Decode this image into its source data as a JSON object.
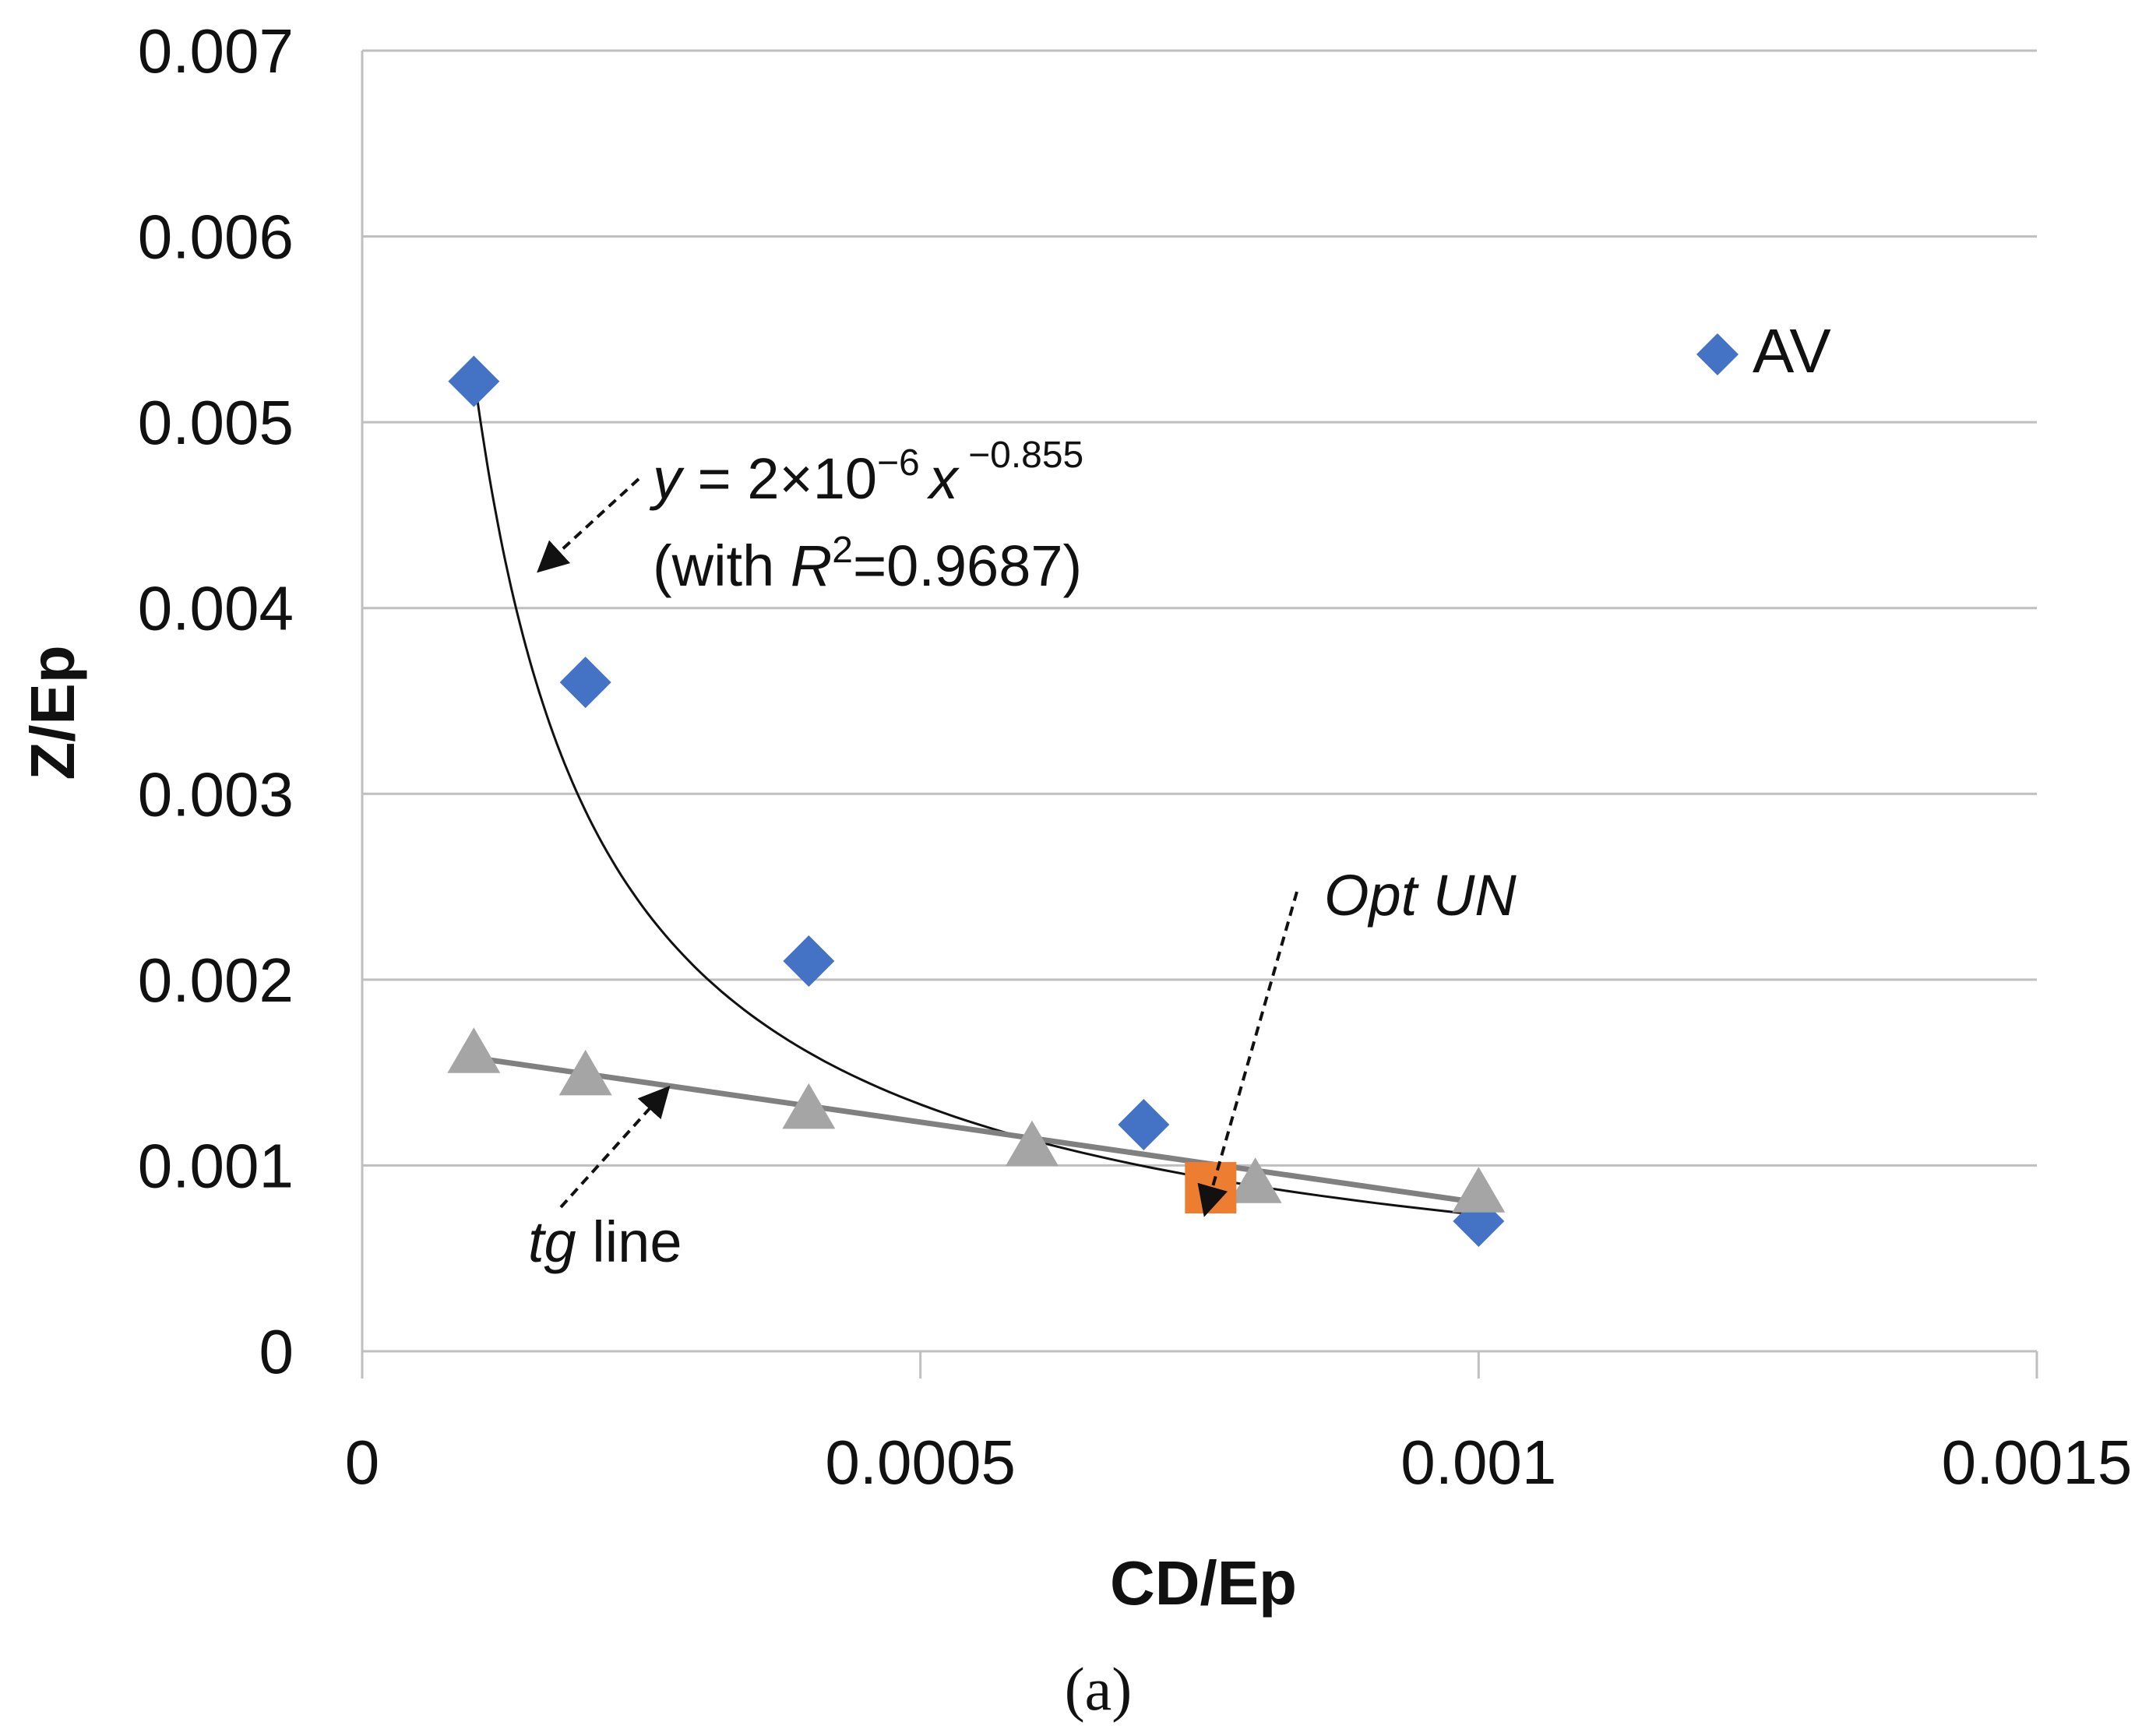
{
  "chart_data": {
    "type": "scatter",
    "title": "",
    "xlabel": "CD/Ep",
    "ylabel": "Z/Ep",
    "xlim": [
      0,
      0.0015
    ],
    "ylim": [
      0,
      0.007
    ],
    "x_ticks": [
      "0",
      "0.0005",
      "0.001",
      "0.0015"
    ],
    "y_ticks": [
      "0",
      "0.001",
      "0.002",
      "0.003",
      "0.004",
      "0.005",
      "0.006",
      "0.007"
    ],
    "grid": "horizontal",
    "legend_position": "top-right",
    "series": [
      {
        "name": "AV",
        "marker": "diamond",
        "color": "#4472C4",
        "points": [
          {
            "x": 0.0001,
            "y": 0.00522
          },
          {
            "x": 0.0002,
            "y": 0.0036
          },
          {
            "x": 0.0004,
            "y": 0.0021
          },
          {
            "x": 0.0007,
            "y": 0.00122
          },
          {
            "x": 0.001,
            "y": 0.0007
          }
        ]
      },
      {
        "name": "tg",
        "marker": "triangle",
        "color": "#A5A5A5",
        "points": [
          {
            "x": 0.0001,
            "y": 0.0016
          },
          {
            "x": 0.0002,
            "y": 0.00148
          },
          {
            "x": 0.0004,
            "y": 0.0013
          },
          {
            "x": 0.0006,
            "y": 0.0011
          },
          {
            "x": 0.0008,
            "y": 0.0009
          },
          {
            "x": 0.001,
            "y": 0.00085
          }
        ]
      },
      {
        "name": "Opt UN",
        "marker": "square",
        "color": "#ED7D31",
        "points": [
          {
            "x": 0.00076,
            "y": 0.00088
          }
        ]
      }
    ],
    "power_fit": {
      "a": 2e-06,
      "b": -0.855,
      "x_range": [
        0.0001,
        0.001
      ],
      "eq_prefix": "y",
      "eq_mid": " = 2×10",
      "eq_exp1": "−6",
      "eq_x": "x",
      "eq_exp2": " −0.855",
      "r2_open": "(with ",
      "r2_var": "R",
      "r2_sup": "2",
      "r2_close": "=0.9687)",
      "color": "#111111"
    },
    "tangent_line": {
      "start": {
        "x": 0.0001,
        "y": 0.00158
      },
      "end": {
        "x": 0.001,
        "y": 0.0008
      },
      "color": "#808080"
    },
    "annotations": {
      "tg_label_italic": "tg",
      "tg_label_rest": " line",
      "opt_label": "Opt UN"
    },
    "legend": {
      "label": "AV"
    },
    "caption": "(a)"
  }
}
